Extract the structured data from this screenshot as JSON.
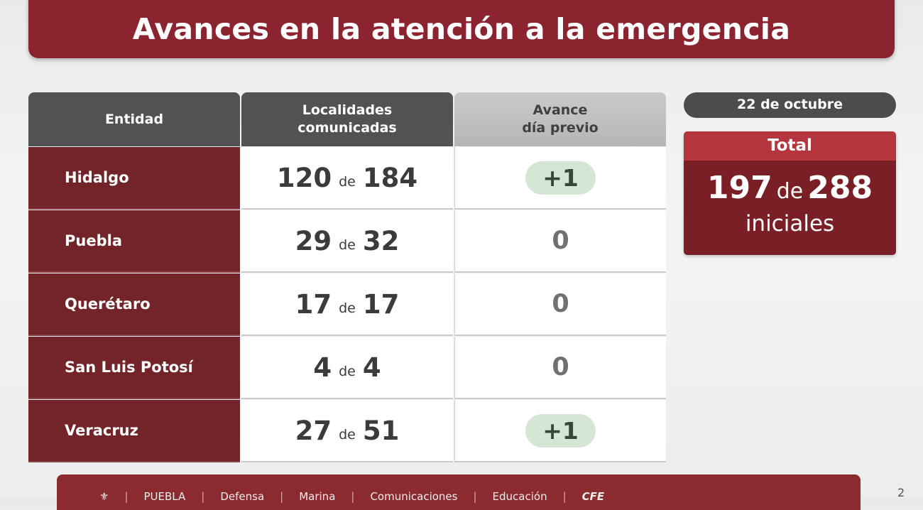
{
  "title": "Avances en la atención a la emergencia",
  "table": {
    "headers": [
      "Entidad",
      "Localidades comunicadas",
      "Avance día previo"
    ],
    "header_lines": {
      "col2": [
        "Localidades",
        "comunicadas"
      ],
      "col3": [
        "Avance",
        "día previo"
      ]
    },
    "connector": "de",
    "rows": [
      {
        "entidad": "Hidalgo",
        "comunicadas": "120",
        "total": "184",
        "avance": "+1",
        "highlight": true
      },
      {
        "entidad": "Puebla",
        "comunicadas": "29",
        "total": "32",
        "avance": "0",
        "highlight": false
      },
      {
        "entidad": "Querétaro",
        "comunicadas": "17",
        "total": "17",
        "avance": "0",
        "highlight": false
      },
      {
        "entidad": "San Luis Potosí",
        "comunicadas": "4",
        "total": "4",
        "avance": "0",
        "highlight": false
      },
      {
        "entidad": "Veracruz",
        "comunicadas": "27",
        "total": "51",
        "avance": "+1",
        "highlight": true
      }
    ]
  },
  "summary": {
    "date": "22 de octubre",
    "label": "Total",
    "comunicadas": "197",
    "connector": "de",
    "total": "288",
    "suffix": "iniciales"
  },
  "footer": {
    "logos": [
      "PUEBLA",
      "Defensa",
      "Marina",
      "Comunicaciones",
      "Educación",
      "CFE"
    ]
  },
  "page_number": "2",
  "colors": {
    "title_bg": "#8c2430",
    "entity_bg": "#722428",
    "header_dark": "#515352",
    "total_header": "#b5353d",
    "total_body": "#7b1f26",
    "positive_pill": "#d6e6d4"
  }
}
